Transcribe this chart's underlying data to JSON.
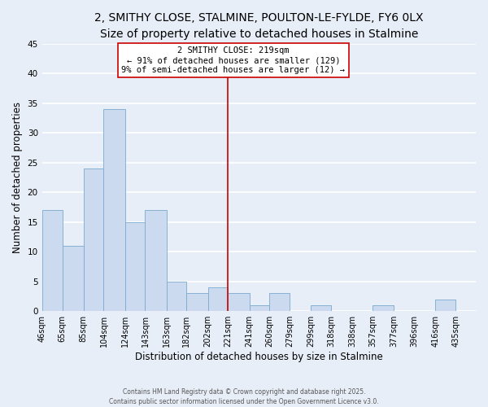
{
  "title": "2, SMITHY CLOSE, STALMINE, POULTON-LE-FYLDE, FY6 0LX",
  "subtitle": "Size of property relative to detached houses in Stalmine",
  "xlabel": "Distribution of detached houses by size in Stalmine",
  "ylabel": "Number of detached properties",
  "bar_color": "#ccdaf0",
  "bar_edge_color": "#7aaad0",
  "background_color": "#e8eef8",
  "grid_color": "#ffffff",
  "bin_labels": [
    "46sqm",
    "65sqm",
    "85sqm",
    "104sqm",
    "124sqm",
    "143sqm",
    "163sqm",
    "182sqm",
    "202sqm",
    "221sqm",
    "241sqm",
    "260sqm",
    "279sqm",
    "299sqm",
    "318sqm",
    "338sqm",
    "357sqm",
    "377sqm",
    "396sqm",
    "416sqm",
    "435sqm"
  ],
  "bin_edges": [
    46,
    65,
    85,
    104,
    124,
    143,
    163,
    182,
    202,
    221,
    241,
    260,
    279,
    299,
    318,
    338,
    357,
    377,
    396,
    416,
    435
  ],
  "bar_heights": [
    17,
    11,
    24,
    34,
    15,
    17,
    5,
    3,
    4,
    3,
    1,
    3,
    0,
    1,
    0,
    0,
    1,
    0,
    0,
    2
  ],
  "ylim": [
    0,
    45
  ],
  "yticks": [
    0,
    5,
    10,
    15,
    20,
    25,
    30,
    35,
    40,
    45
  ],
  "vline_x": 221,
  "vline_color": "#cc0000",
  "annotation_title": "2 SMITHY CLOSE: 219sqm",
  "annotation_line1": "← 91% of detached houses are smaller (129)",
  "annotation_line2": "9% of semi-detached houses are larger (12) →",
  "annotation_box_color": "#ffffff",
  "annotation_box_edge": "#cc0000",
  "footer1": "Contains HM Land Registry data © Crown copyright and database right 2025.",
  "footer2": "Contains public sector information licensed under the Open Government Licence v3.0.",
  "title_fontsize": 10,
  "subtitle_fontsize": 9,
  "tick_label_fontsize": 7,
  "axis_label_fontsize": 8.5
}
